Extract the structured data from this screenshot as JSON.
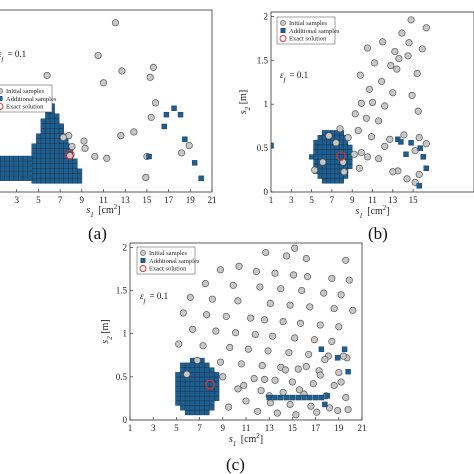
{
  "figure": {
    "panel_labels": [
      "(a)",
      "(b)",
      "(c)"
    ],
    "legend_entries": [
      "Initial samples",
      "Additional samples",
      "Exact solution"
    ],
    "epsilon_text": "ε",
    "epsilon_sub": "f",
    "epsilon_value": "= 0.1",
    "xlabel_main": "s",
    "xlabel_sub": "1",
    "xlabel_unit": "[cm",
    "xlabel_sup": "2",
    "xlabel_close": "]",
    "ylabel_main": "s",
    "ylabel_sub": "2",
    "ylabel_unit": "[m]",
    "colors": {
      "initial_fill": "#c8c8c8",
      "initial_edge": "#555555",
      "additional_fill": "#1f5f8f",
      "additional_edge": "#0a2f4f",
      "exact_edge": "#e03030"
    }
  },
  "chart_data": [
    {
      "type": "scatter",
      "panel": "(a)",
      "xlabel": "s1 [cm2]",
      "xlim": [
        1,
        21
      ],
      "ylim": [
        0,
        2
      ],
      "xticks": [
        3,
        5,
        7,
        9,
        11,
        13,
        15,
        17,
        19,
        21
      ],
      "yticks": [],
      "legend": "top-left",
      "grid": false,
      "series": [
        {
          "name": "Initial samples",
          "x": [
            12.1,
            10.5,
            11.0,
            15.6,
            12.7,
            15.3,
            15.8,
            15.4,
            13.8,
            12.6,
            5.8,
            7.8,
            9.2,
            9.3,
            10.2,
            11.3,
            15.0,
            14.9,
            18.9,
            18.2,
            7.3,
            8.1,
            7.9
          ],
          "y": [
            1.86,
            1.5,
            1.2,
            1.37,
            1.33,
            1.26,
            0.98,
            0.82,
            0.66,
            0.62,
            1.28,
            0.62,
            0.56,
            0.48,
            0.39,
            0.37,
            0.39,
            0.16,
            0.51,
            0.43,
            0.6,
            0.5,
            0.4
          ]
        },
        {
          "name": "Additional samples",
          "x": [
            17.5,
            16.8,
            18.1,
            16.6,
            18.5,
            19.4,
            15.2,
            20.0
          ],
          "y": [
            0.92,
            0.85,
            0.85,
            0.72,
            0.58,
            0.32,
            0.39,
            0.15
          ]
        },
        {
          "name": "Exact solution",
          "x": [
            7.9
          ],
          "y": [
            0.41
          ]
        }
      ]
    },
    {
      "type": "scatter",
      "panel": "(b)",
      "xlabel": "s1 [cm2]",
      "ylabel": "s2 [m]",
      "xlim": [
        1,
        21
      ],
      "ylim": [
        0,
        2.05
      ],
      "xticks": [
        1,
        3,
        5,
        7,
        9,
        11,
        13,
        15
      ],
      "yticks": [
        0,
        0.5,
        1,
        1.5,
        2
      ],
      "legend": "top-left",
      "grid": false,
      "series": [
        {
          "name": "Initial samples",
          "x": [
            14.8,
            16.3,
            13.9,
            12.0,
            14.6,
            10.5,
            15.9,
            13.2,
            14.5,
            13.6,
            11.2,
            12.8,
            13.4,
            15.4,
            9.8,
            11.9,
            10.7,
            13.0,
            14.9,
            9.9,
            11.0,
            12.2,
            15.5,
            9.3,
            10.4,
            11.6,
            9.6,
            10.9,
            12.7,
            14.1,
            15.6,
            16.3,
            15.2,
            12.2,
            9.9,
            10.5,
            11.6,
            9.7,
            13.5,
            14.4,
            5.3,
            6.1,
            7.8,
            8.6,
            9.2,
            8.2,
            15.6,
            15.2,
            13.0,
            6.7,
            7.4,
            8.1
          ],
          "y": [
            1.96,
            1.87,
            1.81,
            1.71,
            1.7,
            1.64,
            1.63,
            1.6,
            1.55,
            1.52,
            1.47,
            1.44,
            1.4,
            1.35,
            1.33,
            1.26,
            1.17,
            1.13,
            1.1,
            1.01,
            1.02,
            0.98,
            0.92,
            0.89,
            0.84,
            0.81,
            0.7,
            0.63,
            0.6,
            0.65,
            0.62,
            0.55,
            0.47,
            0.52,
            0.45,
            0.4,
            0.38,
            0.27,
            0.24,
            0.15,
            0.25,
            0.34,
            0.72,
            0.62,
            0.43,
            0.23,
            0.2,
            0.11,
            0.23,
            0.64,
            0.56,
            0.34
          ]
        },
        {
          "name": "Additional samples",
          "x": [
            1.0,
            13.5,
            13.8,
            14.3,
            14.8,
            15.7,
            16.0,
            16.3,
            15.6
          ],
          "y": [
            0.53,
            0.6,
            0.57,
            0.43,
            0.56,
            0.5,
            0.4,
            0.27,
            0.07
          ]
        },
        {
          "name": "Exact solution",
          "x": [
            7.9
          ],
          "y": [
            0.41
          ]
        }
      ]
    },
    {
      "type": "scatter",
      "panel": "(c)",
      "xlabel": "s1 [cm2]",
      "ylabel": "s2 [m]",
      "xlim": [
        1,
        21
      ],
      "ylim": [
        0,
        2.05
      ],
      "xticks": [
        1,
        3,
        5,
        7,
        9,
        11,
        13,
        15,
        17,
        19,
        21
      ],
      "yticks": [
        0,
        0.5,
        1,
        1.5,
        2
      ],
      "legend": "top-left",
      "grid": false,
      "series": [
        {
          "name": "Initial samples",
          "x": [
            15.2,
            12.7,
            14.5,
            16.2,
            19.6,
            10.4,
            8.8,
            11.9,
            13.5,
            15.1,
            16.3,
            18.4,
            19.9,
            7.5,
            9.9,
            12.2,
            14.0,
            15.8,
            17.7,
            19.2,
            6.2,
            8.1,
            10.3,
            13.1,
            14.8,
            16.5,
            18.6,
            20.2,
            5.6,
            7.6,
            9.3,
            11.4,
            12.6,
            14.2,
            15.7,
            17.4,
            19.0,
            6.4,
            8.4,
            10.1,
            11.8,
            13.3,
            15.2,
            16.9,
            18.4,
            5.2,
            7.3,
            9.6,
            11.2,
            12.9,
            14.7,
            16.4,
            18.1,
            19.7,
            6.8,
            8.8,
            10.6,
            12.4,
            14.0,
            15.5,
            17.3,
            19.0,
            5.9,
            9.0,
            11.7,
            13.5,
            15.0,
            16.8,
            18.6,
            10.3,
            12.3,
            14.2,
            16.0,
            17.9,
            19.6,
            11.0,
            13.1,
            14.8,
            16.6,
            18.2,
            19.8,
            9.5,
            12.0,
            13.7,
            15.3,
            17.1,
            18.9,
            10.8,
            12.6,
            14.4,
            16.2,
            17.8,
            19.4,
            13.0,
            15.6,
            17.4,
            19.2
          ],
          "y": [
            1.99,
            1.94,
            1.9,
            1.87,
            1.85,
            1.78,
            1.74,
            1.72,
            1.7,
            1.68,
            1.66,
            1.64,
            1.62,
            1.58,
            1.56,
            1.54,
            1.52,
            1.5,
            1.47,
            1.45,
            1.42,
            1.4,
            1.38,
            1.35,
            1.33,
            1.31,
            1.29,
            1.27,
            1.24,
            1.22,
            1.2,
            1.18,
            1.16,
            1.14,
            1.12,
            1.1,
            1.08,
            1.05,
            1.03,
            1.01,
            0.99,
            0.97,
            0.95,
            0.93,
            0.91,
            0.88,
            0.86,
            0.84,
            0.82,
            0.8,
            0.78,
            0.76,
            0.74,
            0.72,
            0.69,
            0.67,
            0.65,
            0.63,
            0.61,
            0.59,
            0.57,
            0.55,
            0.53,
            0.5,
            0.48,
            0.46,
            0.44,
            0.42,
            0.4,
            0.36,
            0.34,
            0.32,
            0.3,
            0.28,
            0.26,
            0.22,
            0.2,
            0.18,
            0.16,
            0.14,
            0.12,
            0.15,
            0.1,
            0.08,
            0.06,
            0.09,
            0.11,
            0.4,
            0.47,
            0.58,
            0.62,
            0.7,
            0.74,
            0.28,
            0.35,
            0.52,
            0.44
          ]
        },
        {
          "name": "Additional samples",
          "x": [
            17.5,
            19.5,
            18.9,
            19.8,
            18.0,
            13.0,
            13.5,
            14.0,
            14.5,
            15.0,
            15.5,
            16.0,
            16.5,
            17.0,
            17.5,
            17.8
          ],
          "y": [
            0.82,
            0.82,
            0.72,
            0.56,
            0.28,
            0.26,
            0.26,
            0.26,
            0.26,
            0.26,
            0.26,
            0.26,
            0.26,
            0.26,
            0.26,
            0.18
          ]
        },
        {
          "name": "Exact solution",
          "x": [
            7.9
          ],
          "y": [
            0.41
          ]
        }
      ]
    }
  ]
}
